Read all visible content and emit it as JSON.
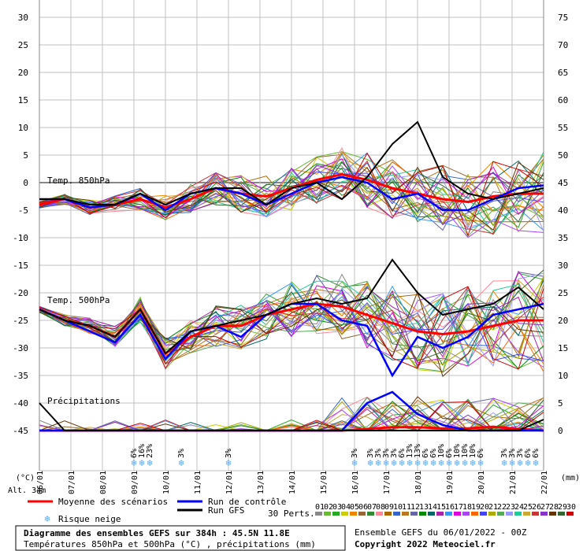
{
  "chart_data": {
    "type": "line",
    "title": "Diagramme des ensembles GEFS sur 384h : 45.5N 11.8E",
    "subtitle": "Températures 850hPa et 500hPa (°C) , précipitations (mm)",
    "run_info": "Ensemble GEFS du 06/01/2022 - 00Z",
    "copyright": "Copyright 2022 Meteociel.fr",
    "altitude": "Alt. 34m",
    "left_unit": "(°C)",
    "right_unit": "(mm)",
    "left_axis": {
      "ticks": [
        "30",
        "25",
        "20",
        "15",
        "10",
        "5",
        "0",
        "-5",
        "-10",
        "-15",
        "-20",
        "-25",
        "-30",
        "-35",
        "-40",
        "-45"
      ]
    },
    "right_axis": {
      "ticks": [
        "75",
        "70",
        "65",
        "60",
        "55",
        "50",
        "45",
        "40",
        "35",
        "30",
        "25",
        "20",
        "15",
        "10",
        "5",
        "0"
      ]
    },
    "x_dates": [
      "06/01",
      "07/01",
      "08/01",
      "09/01",
      "10/01",
      "11/01",
      "12/01",
      "13/01",
      "14/01",
      "15/01",
      "16/01",
      "17/01",
      "18/01",
      "19/01",
      "20/01",
      "21/01",
      "22/01"
    ],
    "panel_labels": {
      "t850": "Temp. 850hPa",
      "t500": "Temp. 500hPa",
      "precip": "Précipitations"
    },
    "snow_risk": [
      {
        "date_idx": 3.0,
        "pct": "6%"
      },
      {
        "date_idx": 3.25,
        "pct": "16%"
      },
      {
        "date_idx": 3.5,
        "pct": "23%"
      },
      {
        "date_idx": 4.5,
        "pct": "3%"
      },
      {
        "date_idx": 6.0,
        "pct": "3%"
      },
      {
        "date_idx": 10.0,
        "pct": "3%"
      },
      {
        "date_idx": 10.5,
        "pct": "3%"
      },
      {
        "date_idx": 10.75,
        "pct": "3%"
      },
      {
        "date_idx": 11.0,
        "pct": "3%"
      },
      {
        "date_idx": 11.25,
        "pct": "3%"
      },
      {
        "date_idx": 11.5,
        "pct": "6%"
      },
      {
        "date_idx": 11.75,
        "pct": "13%"
      },
      {
        "date_idx": 12.0,
        "pct": "13%"
      },
      {
        "date_idx": 12.25,
        "pct": "6%"
      },
      {
        "date_idx": 12.5,
        "pct": "6%"
      },
      {
        "date_idx": 12.75,
        "pct": "10%"
      },
      {
        "date_idx": 13.0,
        "pct": "6%"
      },
      {
        "date_idx": 13.25,
        "pct": "10%"
      },
      {
        "date_idx": 13.5,
        "pct": "10%"
      },
      {
        "date_idx": 13.75,
        "pct": "10%"
      },
      {
        "date_idx": 14.0,
        "pct": "6%"
      },
      {
        "date_idx": 14.75,
        "pct": "3%"
      },
      {
        "date_idx": 15.0,
        "pct": "3%"
      },
      {
        "date_idx": 15.25,
        "pct": "3%"
      },
      {
        "date_idx": 15.5,
        "pct": "6%"
      },
      {
        "date_idx": 15.75,
        "pct": "6%"
      }
    ],
    "series": [
      {
        "name": "Moyenne des scénarios",
        "color": "#ff0000",
        "t850": [
          -4,
          -3,
          -4.5,
          -4,
          -3,
          -4.5,
          -3,
          -1,
          -2,
          -2.5,
          -1,
          0.5,
          1.5,
          0.5,
          -1,
          -2,
          -3,
          -3.5,
          -2.5,
          -2,
          -2
        ],
        "t500": [
          -23,
          -25,
          -26,
          -28,
          -23,
          -31,
          -28,
          -26,
          -26,
          -24,
          -23,
          -22,
          -22.5,
          -24,
          -25.5,
          -27,
          -27.5,
          -27,
          -26,
          -25,
          -25
        ],
        "precip": [
          0,
          0,
          0,
          0,
          0,
          0,
          0,
          0,
          0,
          0,
          0,
          0,
          0,
          0.3,
          0.6,
          0.6,
          0.4,
          0.4,
          0.7,
          0.3,
          0
        ]
      },
      {
        "name": "Run de contrôle",
        "color": "#0000ff",
        "t850": [
          -3,
          -3,
          -4.5,
          -4,
          -2,
          -5,
          -2,
          -1,
          -2,
          -4,
          -2,
          0,
          1,
          0,
          -3,
          -2,
          -5,
          -5,
          -3,
          -1,
          -0.5
        ],
        "t500": [
          -23,
          -25,
          -27,
          -29,
          -24,
          -32,
          -27,
          -26,
          -28,
          -24,
          -22,
          -22,
          -25,
          -26,
          -35,
          -28,
          -30,
          -28,
          -24,
          -23,
          -22
        ],
        "precip": [
          0,
          0,
          0,
          0,
          0,
          0,
          0,
          0,
          0,
          0,
          0,
          0,
          0,
          5,
          7,
          3,
          1,
          0,
          0,
          0,
          0
        ]
      },
      {
        "name": "Run GFS",
        "color": "#000000",
        "t850": [
          -3,
          -3,
          -4,
          -4,
          -2,
          -4,
          -2,
          -1,
          -1,
          -4,
          -1,
          0,
          -3,
          1,
          7,
          11,
          1,
          -2,
          -3,
          -2,
          -1
        ],
        "t500": [
          -23,
          -25,
          -26,
          -28,
          -23,
          -31,
          -27,
          -26,
          -25,
          -24,
          -22,
          -21,
          -22,
          -21,
          -14,
          -20,
          -24,
          -23,
          -22,
          -19,
          -23
        ],
        "precip": [
          5,
          0,
          0,
          0,
          0,
          0,
          0,
          0,
          0,
          0,
          0,
          0,
          0,
          0,
          0,
          0,
          0,
          0,
          0,
          0,
          2
        ]
      }
    ],
    "legend": {
      "mean": "Moyenne des scénarios",
      "control": "Run de contrôle",
      "gfs": "Run GFS",
      "snow": "Risque neige",
      "perts": "30 Perts."
    },
    "pert_labels": [
      "01",
      "02",
      "03",
      "04",
      "05",
      "06",
      "07",
      "08",
      "09",
      "10",
      "11",
      "12",
      "13",
      "14",
      "15",
      "16",
      "17",
      "18",
      "19",
      "20",
      "21",
      "22",
      "23",
      "24",
      "25",
      "26",
      "27",
      "28",
      "29",
      "30"
    ],
    "pert_colors": [
      "#888888",
      "#66bb33",
      "#22aa22",
      "#cccc00",
      "#ee8800",
      "#996633",
      "#338833",
      "#ff8899",
      "#aa6600",
      "#3366cc",
      "#bb7722",
      "#6666aa",
      "#008800",
      "#006666",
      "#aa22aa",
      "#3399ff",
      "#dd00dd",
      "#aa44ff",
      "#ff6600",
      "#4444ff",
      "#aaaa00",
      "#55aa55",
      "#9999ff",
      "#22cc99",
      "#ccaa33",
      "#cc3333",
      "#8833cc",
      "#663300",
      "#336633",
      "#cc0000"
    ]
  }
}
